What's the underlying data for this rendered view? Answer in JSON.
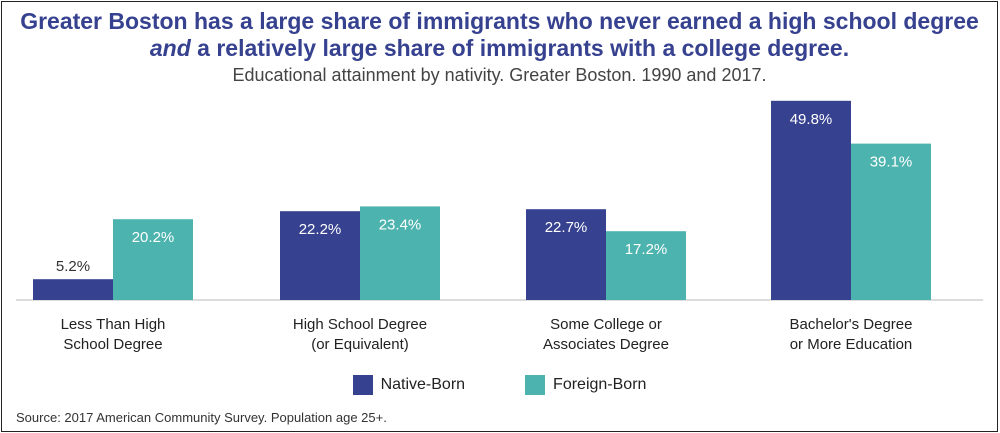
{
  "title_line1": "Greater Boston has a large share of immigrants who never earned a high school degree",
  "title_line2_em": "and",
  "title_line2_rest": " a relatively large share of immigrants with a college degree.",
  "subtitle": "Educational attainment by nativity. Greater Boston. 1990 and 2017.",
  "source": "Source: 2017 American Community Survey. Population age 25+.",
  "colors": {
    "title": "#36418f",
    "native": "#36418f",
    "foreign": "#4db3ae"
  },
  "chart_data": {
    "type": "bar",
    "categories": [
      [
        "Less Than High",
        "School Degree"
      ],
      [
        "High School Degree",
        "(or Equivalent)"
      ],
      [
        "Some College or",
        "Associates Degree"
      ],
      [
        "Bachelor's Degree",
        "or More Education"
      ]
    ],
    "series": [
      {
        "name": "Native-Born",
        "values": [
          5.2,
          22.2,
          22.7,
          49.8
        ],
        "labels": [
          "5.2%",
          "22.2%",
          "22.7%",
          "49.8%"
        ]
      },
      {
        "name": "Foreign-Born",
        "values": [
          20.2,
          23.4,
          17.2,
          39.1
        ],
        "labels": [
          "20.2%",
          "23.4%",
          "17.2%",
          "39.1%"
        ]
      }
    ],
    "ylim": [
      0,
      50
    ],
    "grid": false,
    "legend_position": "bottom"
  }
}
